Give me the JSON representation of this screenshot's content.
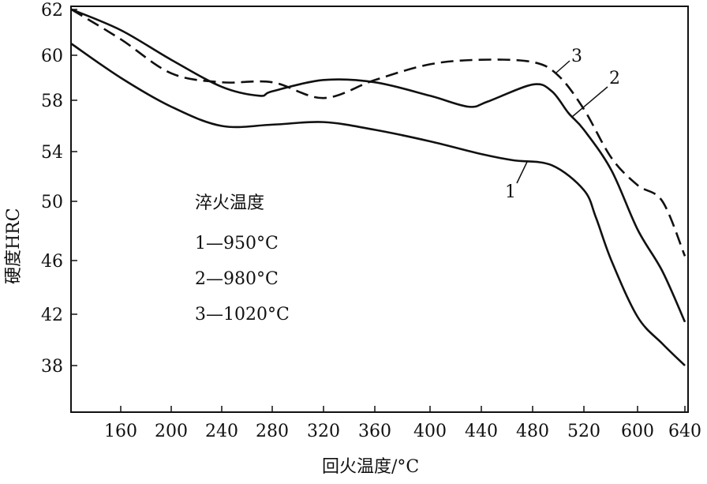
{
  "chart_data": {
    "type": "line",
    "title": "",
    "xlabel": "回火温度/°C",
    "ylabel": "硬度HRC",
    "x_ticks": [
      160,
      200,
      240,
      280,
      320,
      360,
      400,
      440,
      480,
      520,
      600,
      640
    ],
    "y_ticks": [
      62,
      60,
      58,
      54,
      50,
      46,
      42,
      38
    ],
    "xlim": [
      120,
      640
    ],
    "ylim": [
      34,
      62
    ],
    "legend": {
      "title": "淬火温度",
      "entries": [
        "1—950°C",
        "2—980°C",
        "3—1020°C"
      ],
      "placement": "center-left"
    },
    "series": [
      {
        "name": "1",
        "label": "1",
        "style": "solid",
        "points": [
          [
            121,
            60.5
          ],
          [
            160,
            59.0
          ],
          [
            200,
            57.5
          ],
          [
            240,
            56.0
          ],
          [
            280,
            56.1
          ],
          [
            320,
            56.3
          ],
          [
            360,
            55.7
          ],
          [
            400,
            54.8
          ],
          [
            440,
            53.8
          ],
          [
            465,
            53.3
          ],
          [
            495,
            52.9
          ],
          [
            520,
            50.9
          ],
          [
            538,
            48.9
          ],
          [
            561,
            46
          ],
          [
            600,
            41.8
          ],
          [
            621,
            39.7
          ],
          [
            640,
            38
          ]
        ]
      },
      {
        "name": "2",
        "label": "2",
        "style": "solid",
        "points": [
          [
            121,
            62
          ],
          [
            160,
            61.1
          ],
          [
            200,
            59.8
          ],
          [
            240,
            58.6
          ],
          [
            270,
            58.2
          ],
          [
            280,
            58.4
          ],
          [
            320,
            58.9
          ],
          [
            360,
            58.8
          ],
          [
            400,
            58.2
          ],
          [
            430,
            57.5
          ],
          [
            445,
            57.9
          ],
          [
            480,
            58.7
          ],
          [
            495,
            58.4
          ],
          [
            508,
            57.0
          ],
          [
            520,
            55.7
          ],
          [
            561,
            52.5
          ],
          [
            600,
            48.1
          ],
          [
            621,
            45.2
          ],
          [
            640,
            41.4
          ]
        ]
      },
      {
        "name": "3",
        "label": "3",
        "style": "dashed",
        "points": [
          [
            121,
            62
          ],
          [
            160,
            60.7
          ],
          [
            200,
            59.2
          ],
          [
            240,
            58.8
          ],
          [
            280,
            58.8
          ],
          [
            320,
            58.1
          ],
          [
            360,
            58.9
          ],
          [
            400,
            59.6
          ],
          [
            440,
            59.8
          ],
          [
            480,
            59.7
          ],
          [
            500,
            59.1
          ],
          [
            520,
            57.3
          ],
          [
            561,
            53.5
          ],
          [
            600,
            51.3
          ],
          [
            621,
            50
          ],
          [
            640,
            46.3
          ]
        ]
      }
    ]
  }
}
